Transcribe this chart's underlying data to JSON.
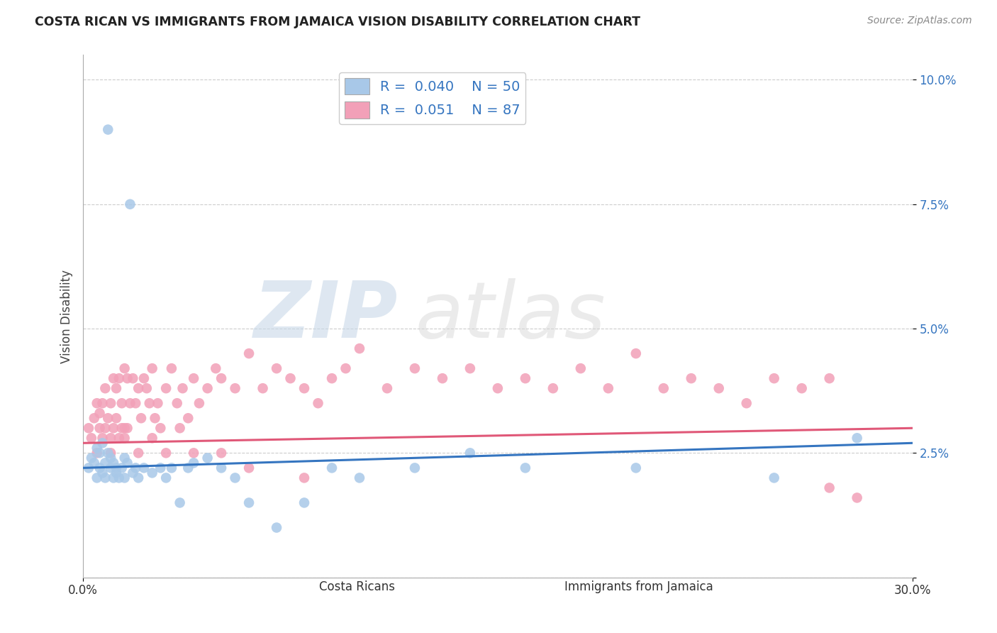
{
  "title": "COSTA RICAN VS IMMIGRANTS FROM JAMAICA VISION DISABILITY CORRELATION CHART",
  "source": "Source: ZipAtlas.com",
  "ylabel": "Vision Disability",
  "xlim": [
    0.0,
    0.3
  ],
  "ylim": [
    0.0,
    0.105
  ],
  "yticks": [
    0.0,
    0.025,
    0.05,
    0.075,
    0.1
  ],
  "ytick_labels": [
    "",
    "2.5%",
    "5.0%",
    "7.5%",
    "10.0%"
  ],
  "legend_r_blue": "R = 0.040",
  "legend_n_blue": "N = 50",
  "legend_r_pink": "R = 0.051",
  "legend_n_pink": "N = 87",
  "blue_color": "#A8C8E8",
  "pink_color": "#F2A0B8",
  "blue_line_color": "#3575C0",
  "pink_line_color": "#E05878",
  "blue_scatter_x": [
    0.002,
    0.003,
    0.004,
    0.005,
    0.005,
    0.006,
    0.006,
    0.007,
    0.007,
    0.008,
    0.008,
    0.009,
    0.009,
    0.01,
    0.01,
    0.011,
    0.011,
    0.012,
    0.012,
    0.013,
    0.014,
    0.015,
    0.015,
    0.016,
    0.017,
    0.018,
    0.019,
    0.02,
    0.022,
    0.025,
    0.028,
    0.03,
    0.032,
    0.035,
    0.038,
    0.04,
    0.045,
    0.05,
    0.055,
    0.06,
    0.07,
    0.08,
    0.09,
    0.1,
    0.12,
    0.14,
    0.16,
    0.2,
    0.25,
    0.28
  ],
  "blue_scatter_y": [
    0.022,
    0.024,
    0.023,
    0.02,
    0.026,
    0.022,
    0.025,
    0.021,
    0.027,
    0.023,
    0.02,
    0.09,
    0.025,
    0.022,
    0.024,
    0.02,
    0.023,
    0.021,
    0.022,
    0.02,
    0.022,
    0.024,
    0.02,
    0.023,
    0.075,
    0.021,
    0.022,
    0.02,
    0.022,
    0.021,
    0.022,
    0.02,
    0.022,
    0.015,
    0.022,
    0.023,
    0.024,
    0.022,
    0.02,
    0.015,
    0.01,
    0.015,
    0.022,
    0.02,
    0.022,
    0.025,
    0.022,
    0.022,
    0.02,
    0.028
  ],
  "pink_scatter_x": [
    0.002,
    0.003,
    0.004,
    0.005,
    0.005,
    0.006,
    0.006,
    0.007,
    0.007,
    0.008,
    0.008,
    0.009,
    0.01,
    0.01,
    0.011,
    0.011,
    0.012,
    0.012,
    0.013,
    0.013,
    0.014,
    0.014,
    0.015,
    0.015,
    0.016,
    0.016,
    0.017,
    0.018,
    0.019,
    0.02,
    0.021,
    0.022,
    0.023,
    0.024,
    0.025,
    0.026,
    0.027,
    0.028,
    0.03,
    0.032,
    0.034,
    0.036,
    0.038,
    0.04,
    0.042,
    0.045,
    0.048,
    0.05,
    0.055,
    0.06,
    0.065,
    0.07,
    0.075,
    0.08,
    0.085,
    0.09,
    0.095,
    0.1,
    0.11,
    0.12,
    0.13,
    0.14,
    0.15,
    0.16,
    0.17,
    0.18,
    0.19,
    0.2,
    0.21,
    0.22,
    0.23,
    0.24,
    0.25,
    0.26,
    0.27,
    0.01,
    0.015,
    0.02,
    0.025,
    0.03,
    0.035,
    0.04,
    0.05,
    0.06,
    0.08,
    0.27,
    0.28
  ],
  "pink_scatter_y": [
    0.03,
    0.028,
    0.032,
    0.025,
    0.035,
    0.03,
    0.033,
    0.028,
    0.035,
    0.03,
    0.038,
    0.032,
    0.035,
    0.028,
    0.04,
    0.03,
    0.038,
    0.032,
    0.04,
    0.028,
    0.035,
    0.03,
    0.042,
    0.028,
    0.04,
    0.03,
    0.035,
    0.04,
    0.035,
    0.038,
    0.032,
    0.04,
    0.038,
    0.035,
    0.042,
    0.032,
    0.035,
    0.03,
    0.038,
    0.042,
    0.035,
    0.038,
    0.032,
    0.04,
    0.035,
    0.038,
    0.042,
    0.04,
    0.038,
    0.045,
    0.038,
    0.042,
    0.04,
    0.038,
    0.035,
    0.04,
    0.042,
    0.046,
    0.038,
    0.042,
    0.04,
    0.042,
    0.038,
    0.04,
    0.038,
    0.042,
    0.038,
    0.045,
    0.038,
    0.04,
    0.038,
    0.035,
    0.04,
    0.038,
    0.04,
    0.025,
    0.03,
    0.025,
    0.028,
    0.025,
    0.03,
    0.025,
    0.025,
    0.022,
    0.02,
    0.018,
    0.016
  ],
  "blue_line_start_y": 0.022,
  "blue_line_end_y": 0.027,
  "pink_line_start_y": 0.027,
  "pink_line_end_y": 0.03
}
